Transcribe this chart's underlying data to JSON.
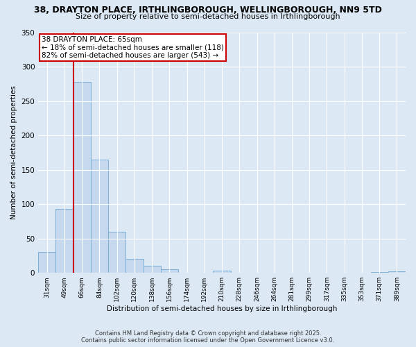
{
  "title": "38, DRAYTON PLACE, IRTHLINGBOROUGH, WELLINGBOROUGH, NN9 5TD",
  "subtitle": "Size of property relative to semi-detached houses in Irthlingborough",
  "xlabel": "Distribution of semi-detached houses by size in Irthlingborough",
  "ylabel": "Number of semi-detached properties",
  "categories": [
    "31sqm",
    "49sqm",
    "66sqm",
    "84sqm",
    "102sqm",
    "120sqm",
    "138sqm",
    "156sqm",
    "174sqm",
    "192sqm",
    "210sqm",
    "228sqm",
    "246sqm",
    "264sqm",
    "281sqm",
    "299sqm",
    "317sqm",
    "335sqm",
    "353sqm",
    "371sqm",
    "389sqm"
  ],
  "values": [
    30,
    93,
    278,
    165,
    60,
    20,
    10,
    5,
    0,
    0,
    3,
    0,
    0,
    0,
    0,
    0,
    0,
    0,
    0,
    1,
    2
  ],
  "bar_color": "#c5d8ed",
  "bar_edge_color": "#7bafd4",
  "vline_color": "#cc0000",
  "vline_x_index": 2,
  "annotation_title": "38 DRAYTON PLACE: 65sqm",
  "annotation_line1": "← 18% of semi-detached houses are smaller (118)",
  "annotation_line2": "82% of semi-detached houses are larger (543) →",
  "annotation_box_color": "#ffffff",
  "annotation_box_edge": "#cc0000",
  "ylim": [
    0,
    350
  ],
  "yticks": [
    0,
    50,
    100,
    150,
    200,
    250,
    300,
    350
  ],
  "footer1": "Contains HM Land Registry data © Crown copyright and database right 2025.",
  "footer2": "Contains public sector information licensed under the Open Government Licence v3.0.",
  "bg_color": "#dce9f5",
  "plot_bg_color": "#dce9f5",
  "title_fontsize": 9,
  "subtitle_fontsize": 8
}
